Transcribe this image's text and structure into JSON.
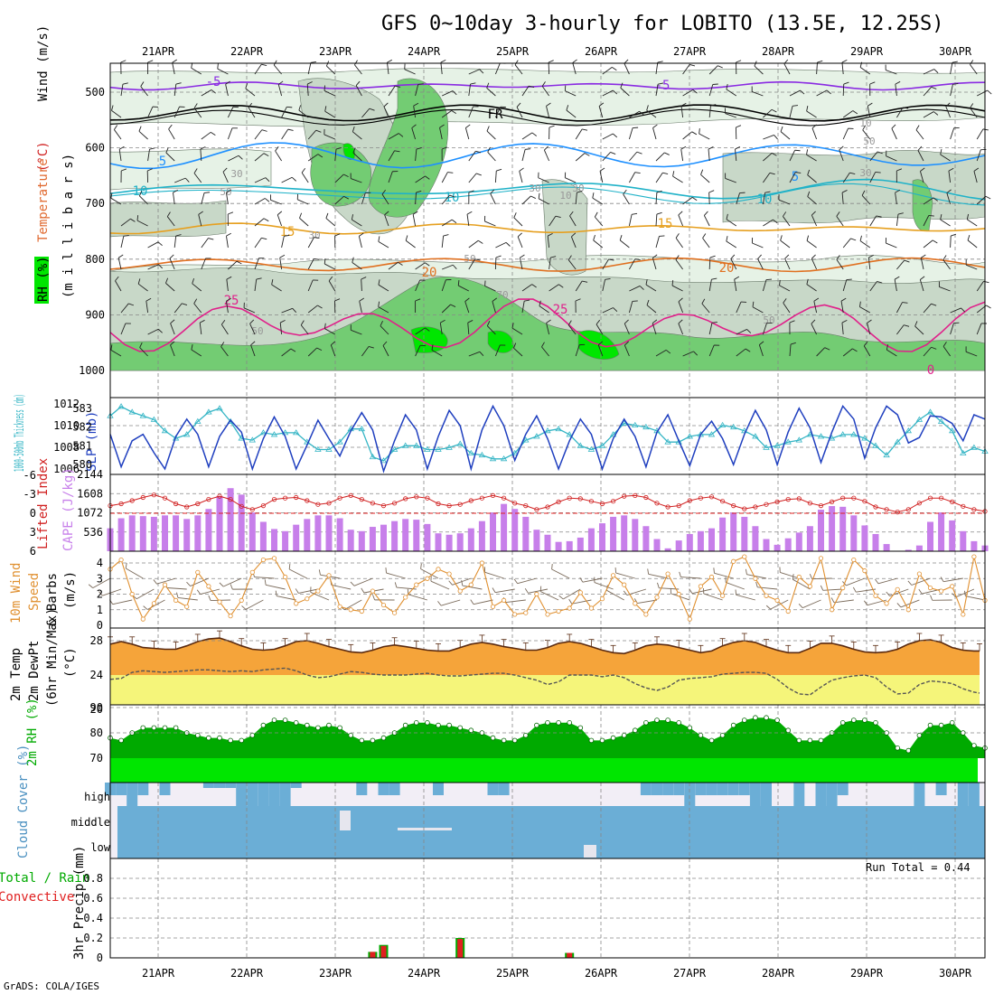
{
  "title": "GFS 0~10day 3-hourly for LOBITO (13.5E, 12.25S)",
  "credit": "GrADS: COLA/IGES",
  "dates": [
    "21APR",
    "22APR",
    "23APR",
    "24APR",
    "25APR",
    "26APR",
    "27APR",
    "28APR",
    "29APR",
    "30APR"
  ],
  "colors": {
    "grid": "#888888",
    "rh_light": "#e6f2e6",
    "rh_mid": "#c8d8c8",
    "rh_dark": "#73cc73",
    "rh_bright": "#00e600",
    "orange": "#f5a43a",
    "yellow": "#f5f57a",
    "purple": "#c77fea",
    "cloud": "#6baed6",
    "cloud_bg": "#f2eef6",
    "green_dark": "#00aa00",
    "green": "#00e600",
    "slp": "#1f3fbf",
    "thick": "#35b5c5",
    "li": "#d02020",
    "wind": "#e09030"
  },
  "chart_data": [
    {
      "type": "heatmap",
      "name": "sounding",
      "ylabel_parts": [
        "RH (%)",
        "Temperature",
        "(°C)",
        "Wind (m/s)"
      ],
      "ylabel_unit": "(m i l l i b a r s)",
      "yticks": [
        "500",
        "600",
        "700",
        "800",
        "900",
        "1000"
      ],
      "ylim": [
        450,
        1000
      ],
      "isotherm_labels": [
        "-5",
        "-5",
        "FR",
        "5",
        "5",
        "10",
        "10",
        "10",
        "15",
        "15",
        "20",
        "20",
        "25",
        "25",
        "0"
      ],
      "rh_labels": [
        "50",
        "30",
        "30",
        "10",
        "30",
        "50",
        "30",
        "70",
        "50",
        "50",
        "10",
        "30",
        "50"
      ]
    },
    {
      "type": "line",
      "name": "slp-thickness",
      "ylabel_left": "1000-500mb Thickness (dm)",
      "ylabel_right": "SLP (mb)",
      "left_ticks": [
        "583",
        "582",
        "581",
        "580"
      ],
      "right_ticks": [
        "1012",
        "1010",
        "1008",
        "1006"
      ],
      "series": [
        {
          "name": "SLP",
          "values": [
            1009.2,
            1006.2,
            1008.6,
            1009.2,
            1007.5,
            1006.0,
            1009.0,
            1010.6,
            1009.2,
            1006.2,
            1009.0,
            1010.5,
            1009.4,
            1006.0,
            1008.8,
            1010.8,
            1009.0,
            1006.0,
            1008.2,
            1010.5,
            1008.8,
            1007.2,
            1009.5,
            1011.2,
            1009.6,
            1005.8,
            1008.6,
            1011.0,
            1009.6,
            1006.0,
            1009.0,
            1011.4,
            1010.0,
            1006.0,
            1009.6,
            1011.8,
            1010.0,
            1006.8,
            1009.2,
            1010.9,
            1008.8,
            1006.0,
            1008.6,
            1010.6,
            1009.2,
            1006.0,
            1008.8,
            1010.6,
            1009.0,
            1006.2,
            1009.4,
            1011.0,
            1008.6,
            1006.3,
            1009.2,
            1010.4,
            1008.8,
            1006.4,
            1009.2,
            1011.4,
            1009.6,
            1006.4,
            1009.4,
            1011.6,
            1009.8,
            1006.6,
            1009.4,
            1011.8,
            1010.6,
            1007.0,
            1009.8,
            1011.8,
            1011.0,
            1008.4,
            1008.9,
            1010.9,
            1010.8,
            1010.2,
            1008.6,
            1011.0,
            1010.6
          ]
        },
        {
          "name": "Thickness",
          "values": [
            582.6,
            583.1,
            582.8,
            582.6,
            582.4,
            581.8,
            581.4,
            581.6,
            582.3,
            582.8,
            583.0,
            582.3,
            581.4,
            581.3,
            581.7,
            581.6,
            581.7,
            581.7,
            581.2,
            580.8,
            580.8,
            581.2,
            581.9,
            581.9,
            580.4,
            580.2,
            580.8,
            581.0,
            581.0,
            580.8,
            580.8,
            580.9,
            581.1,
            580.6,
            580.5,
            580.3,
            580.3,
            580.6,
            581.3,
            581.5,
            581.8,
            581.9,
            581.6,
            581.0,
            580.8,
            581.0,
            581.6,
            582.2,
            582.1,
            582.0,
            581.8,
            581.2,
            581.2,
            581.5,
            581.6,
            581.6,
            582.1,
            582.0,
            581.8,
            581.5,
            580.9,
            581.0,
            581.2,
            581.3,
            581.6,
            581.5,
            581.4,
            581.6,
            581.6,
            581.4,
            581.0,
            580.5,
            581.2,
            581.8,
            582.4,
            582.8,
            582.3,
            581.8,
            580.6,
            580.9,
            580.7
          ]
        }
      ]
    },
    {
      "type": "bar",
      "name": "cape-li",
      "ylabel_left": "Lifted Index",
      "ylabel_right": "CAPE (J/kg)",
      "left_ticks": [
        "-6",
        "-3",
        "0",
        "3",
        "6"
      ],
      "right_ticks": [
        "2144",
        "1608",
        "1072",
        "536"
      ],
      "series": [
        {
          "name": "CAPE",
          "values": [
            640,
            920,
            1000,
            980,
            960,
            1000,
            1000,
            900,
            1000,
            1180,
            1540,
            1760,
            1580,
            1080,
            820,
            620,
            560,
            740,
            900,
            1000,
            1000,
            920,
            600,
            560,
            680,
            740,
            840,
            900,
            880,
            760,
            500,
            460,
            500,
            640,
            840,
            1080,
            1320,
            1180,
            960,
            600,
            460,
            260,
            280,
            380,
            640,
            780,
            960,
            1000,
            900,
            700,
            340,
            80,
            300,
            480,
            560,
            640,
            940,
            1080,
            960,
            700,
            340,
            180,
            360,
            520,
            700,
            1160,
            1260,
            1240,
            1000,
            720,
            480,
            200,
            0,
            40,
            160,
            820,
            1080,
            860,
            560,
            280,
            160
          ]
        },
        {
          "name": "Lifted Index",
          "values": [
            -1.2,
            -1.5,
            -2.0,
            -2.5,
            -2.9,
            -2.4,
            -1.5,
            -1.0,
            -1.5,
            -2.2,
            -2.7,
            -2.2,
            -1.1,
            -0.6,
            -1.2,
            -2.2,
            -2.4,
            -2.5,
            -2.0,
            -1.4,
            -1.6,
            -2.4,
            -2.8,
            -2.2,
            -1.6,
            -1.2,
            -1.6,
            -2.3,
            -2.6,
            -2.4,
            -1.5,
            -1.2,
            -1.4,
            -2.0,
            -2.4,
            -2.8,
            -2.4,
            -1.6,
            -1.2,
            -0.6,
            -1.0,
            -1.8,
            -2.4,
            -2.3,
            -1.9,
            -1.5,
            -1.9,
            -2.7,
            -2.8,
            -2.5,
            -1.6,
            -1.0,
            -1.2,
            -2.0,
            -2.4,
            -2.6,
            -1.9,
            -1.2,
            -0.7,
            -1.0,
            -1.4,
            -1.8,
            -2.2,
            -2.3,
            -1.6,
            -1.2,
            -1.8,
            -2.4,
            -2.4,
            -1.9,
            -1.0,
            -0.6,
            -0.2,
            -0.6,
            -1.6,
            -2.4,
            -2.4,
            -1.8,
            -1.1,
            -0.6,
            -0.3
          ]
        }
      ]
    },
    {
      "type": "line",
      "name": "wind10m",
      "ylabel": "10m Wind Speed (m/s) & Barbs",
      "ylabel_parts": [
        "10m Wind",
        "Speed",
        "& Barbs",
        "(m/s)"
      ],
      "ylim": [
        0,
        4.5
      ],
      "yticks": [
        "0",
        "1",
        "2",
        "3",
        "4"
      ],
      "series": [
        {
          "name": "Wind Speed",
          "values": [
            3.6,
            4.2,
            2.0,
            0.4,
            1.4,
            2.6,
            1.6,
            1.2,
            3.4,
            2.5,
            1.5,
            0.6,
            1.6,
            3.4,
            4.2,
            4.3,
            3.1,
            1.4,
            1.7,
            2.2,
            3.2,
            1.2,
            1.0,
            0.9,
            2.2,
            1.3,
            0.8,
            1.8,
            2.6,
            3.0,
            3.6,
            3.3,
            2.2,
            2.6,
            4.0,
            1.2,
            1.6,
            0.7,
            0.8,
            2.0,
            0.7,
            0.9,
            1.1,
            2.1,
            1.1,
            1.7,
            3.2,
            2.6,
            1.4,
            0.7,
            1.8,
            3.3,
            2.0,
            0.4,
            2.5,
            3.1,
            1.9,
            4.1,
            4.4,
            3.0,
            1.9,
            1.6,
            0.9,
            3.1,
            2.5,
            4.3,
            1.0,
            2.4,
            4.2,
            3.5,
            1.9,
            1.4,
            2.3,
            1.0,
            3.3,
            2.4,
            2.2,
            2.5,
            0.7,
            4.4,
            1.6
          ]
        }
      ]
    },
    {
      "type": "area",
      "name": "temp-dewpt",
      "ylabel": "2m Temp 2m DewPt (6hr Min/Max) (°C)",
      "ylabel_parts": [
        "2m Temp",
        "2m DewPt",
        "(6hr Min/Max)",
        "(°C)"
      ],
      "ylim": [
        20.5,
        29.5
      ],
      "yticks": [
        "28",
        "24",
        "20"
      ],
      "series": [
        {
          "name": "2m Temp",
          "values": [
            27.6,
            27.9,
            27.6,
            27.2,
            27.1,
            27.0,
            27.0,
            27.4,
            27.9,
            28.2,
            28.3,
            27.9,
            27.4,
            27.0,
            26.9,
            27.0,
            27.4,
            27.9,
            28.0,
            27.7,
            27.3,
            27.0,
            26.7,
            26.6,
            26.9,
            27.3,
            27.5,
            27.3,
            27.1,
            26.9,
            26.8,
            26.8,
            27.2,
            27.6,
            27.8,
            27.6,
            27.3,
            27.1,
            26.9,
            26.9,
            27.2,
            27.7,
            27.9,
            27.7,
            27.3,
            26.9,
            26.6,
            26.5,
            26.9,
            27.4,
            27.6,
            27.5,
            27.2,
            26.9,
            26.6,
            26.8,
            27.4,
            27.8,
            28.0,
            27.8,
            27.3,
            26.9,
            26.6,
            26.6,
            27.1,
            27.7,
            27.7,
            27.4,
            27.0,
            26.7,
            26.6,
            26.7,
            27.0,
            27.6,
            28.0,
            28.1,
            27.8,
            27.2,
            26.9,
            26.8,
            26.8
          ]
        },
        {
          "name": "2m DewPt",
          "values": [
            23.5,
            23.6,
            24.3,
            24.5,
            24.4,
            24.3,
            24.4,
            24.5,
            24.6,
            24.6,
            24.5,
            24.4,
            24.5,
            24.4,
            24.6,
            24.7,
            24.8,
            24.5,
            24.0,
            23.7,
            23.8,
            24.1,
            24.4,
            24.3,
            24.1,
            24.0,
            24.0,
            24.0,
            24.1,
            24.2,
            24.0,
            23.9,
            23.9,
            24.0,
            24.1,
            24.2,
            24.2,
            24.0,
            23.7,
            23.4,
            22.9,
            23.2,
            24.0,
            24.0,
            24.0,
            23.8,
            24.0,
            23.7,
            23.0,
            22.5,
            22.2,
            22.6,
            23.4,
            23.6,
            23.7,
            23.8,
            24.1,
            24.2,
            24.3,
            24.3,
            24.2,
            23.5,
            22.5,
            21.8,
            21.7,
            22.6,
            23.4,
            23.7,
            23.9,
            24.0,
            23.7,
            22.6,
            21.8,
            21.9,
            22.9,
            23.3,
            23.2,
            23.0,
            22.4,
            22.0,
            21.9
          ]
        }
      ]
    },
    {
      "type": "area",
      "name": "rh2m",
      "ylabel": "2m RH (%)",
      "ylim": [
        60,
        92
      ],
      "yticks": [
        "90",
        "80",
        "70"
      ],
      "series": [
        {
          "name": "2m RH",
          "values": [
            78,
            77,
            80,
            82,
            82,
            82,
            82,
            80,
            79,
            78,
            78,
            77,
            77,
            79,
            83,
            85,
            85,
            84,
            83,
            82,
            83,
            82,
            79,
            77,
            77,
            78,
            80,
            83,
            84,
            84,
            83,
            83,
            82,
            81,
            80,
            78,
            77,
            77,
            79,
            83,
            84,
            84,
            84,
            82,
            77,
            77,
            78,
            79,
            81,
            84,
            85,
            85,
            84,
            82,
            79,
            77,
            79,
            83,
            85,
            86,
            86,
            85,
            81,
            77,
            77,
            77,
            80,
            84,
            85,
            85,
            84,
            80,
            74,
            73,
            79,
            83,
            83,
            84,
            80,
            75,
            74
          ]
        }
      ]
    },
    {
      "type": "bar",
      "name": "cloud-cover",
      "ylabel": "Cloud Cover (%)",
      "layers": [
        "high",
        "middle",
        "low"
      ]
    },
    {
      "type": "bar",
      "name": "precip",
      "ylabel": "3hr Precip (mm)",
      "legend_left": [
        "Total / Rain",
        "Convective"
      ],
      "run_total_label": "Run Total = 0.44",
      "ylim": [
        0,
        1.0
      ],
      "yticks": [
        "0",
        "0.2",
        "0.4",
        "0.6",
        "0.8"
      ],
      "bars": [
        {
          "step": 24,
          "total": 0.06,
          "convective": 0.06
        },
        {
          "step": 25,
          "total": 0.13,
          "convective": 0.12
        },
        {
          "step": 32,
          "total": 0.2,
          "convective": 0.19
        },
        {
          "step": 42,
          "total": 0.05,
          "convective": 0.05
        }
      ]
    }
  ]
}
